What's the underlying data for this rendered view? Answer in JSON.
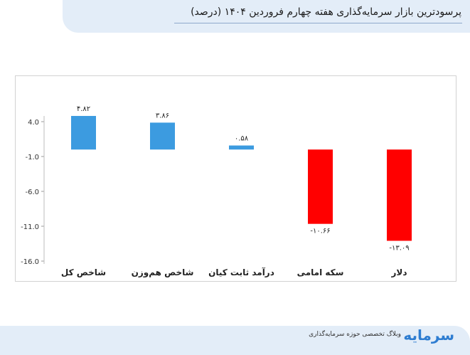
{
  "header": {
    "title": "پرسودترین بازار سرمایه‌گذاری هفته چهارم فروردین ۱۴۰۴ (درصد)"
  },
  "footer": {
    "caption": "وبلاگ تخصصی حوزه سرمایه‌گذاری",
    "logo_text": "سرمایه"
  },
  "colors": {
    "positive": "#3c9be0",
    "negative": "#ff0000",
    "band": "#e3edf8"
  },
  "chart_data": {
    "type": "bar",
    "categories": [
      "شاخص کل",
      "شاخص هم‌وزن",
      "درآمد ثابت کیان",
      "سکه امامی",
      "دلار"
    ],
    "values": [
      4.82,
      3.86,
      0.58,
      -10.66,
      -13.09
    ],
    "value_labels": [
      "۴.۸۲",
      "۳.۸۶",
      "۰.۵۸",
      "-۱۰.۶۶",
      "-۱۳.۰۹"
    ],
    "yticks": [
      4.0,
      -1.0,
      -6.0,
      -11.0,
      -16.0
    ],
    "ytick_labels": [
      "4.0",
      "-1.0",
      "-6.0",
      "-11.0",
      "-16.0"
    ],
    "ylim": [
      -16,
      4
    ],
    "grid": false,
    "legend": false
  }
}
